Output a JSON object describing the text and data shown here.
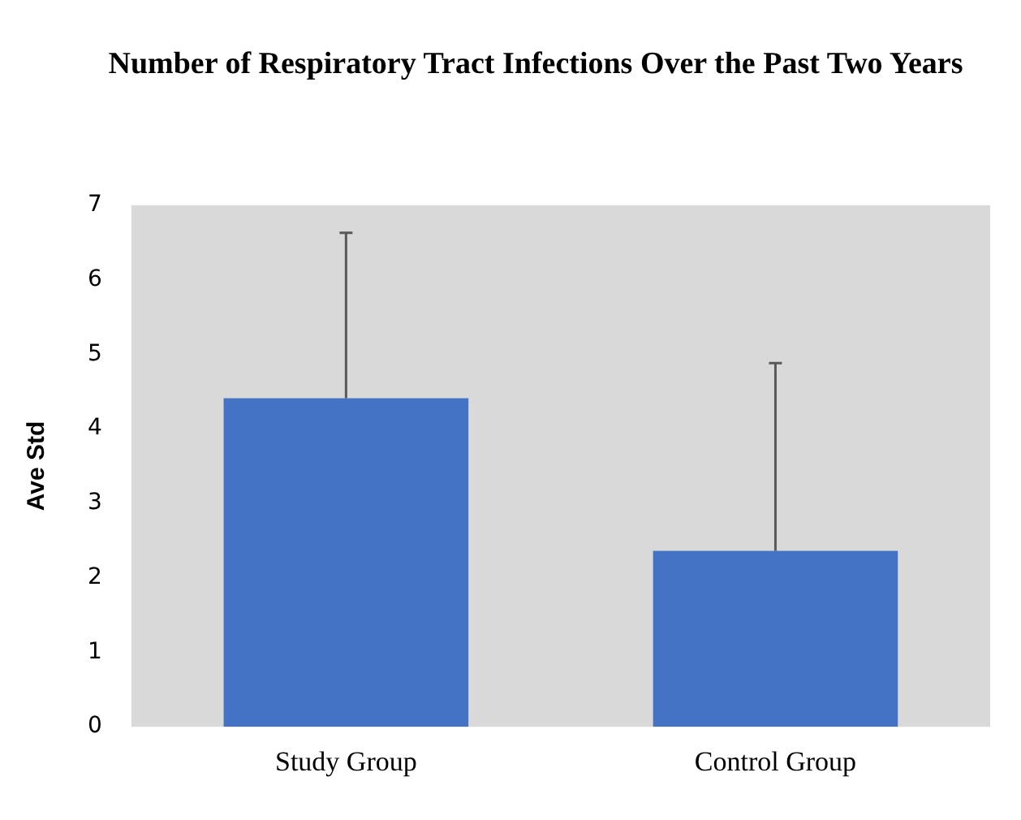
{
  "chart_data": {
    "type": "bar",
    "title": "Number of Respiratory Tract Infections Over the Past Two Years",
    "ylabel": "Ave Std",
    "categories": [
      "Study Group",
      "Control Group"
    ],
    "values": [
      4.41,
      2.36
    ],
    "errors": [
      [
        4.41,
        6.63
      ],
      [
        2.36,
        4.88
      ]
    ],
    "color": "#4472c4",
    "ylim": [
      0,
      7
    ],
    "yticks": [
      0,
      1,
      2,
      3,
      4,
      5,
      6,
      7
    ],
    "grid": false,
    "legend": false
  }
}
